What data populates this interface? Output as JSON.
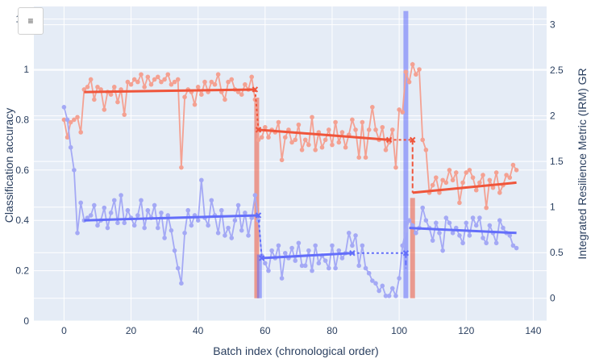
{
  "ui": {
    "menu_icon": "≡"
  },
  "chart_data": {
    "type": "line",
    "title": "",
    "xlabel": "Batch index (chronological order)",
    "ylabel": "Classification accuracy",
    "y2label": "Integrated Resilience Metric (IRM) GR",
    "xlim": [
      -9,
      144
    ],
    "ylim": [
      0,
      1.25
    ],
    "y2lim": [
      -0.25,
      3.2
    ],
    "x_ticks": [
      0,
      20,
      40,
      60,
      80,
      100,
      120,
      140
    ],
    "y_ticks": [
      0,
      0.2,
      0.4,
      0.6,
      0.8,
      1,
      1.2
    ],
    "y2_ticks": [
      0,
      0.5,
      1,
      1.5,
      2,
      2.5,
      3
    ],
    "grid": true,
    "colors": {
      "red_raw": "#f4a192",
      "red_fit": "#ef553b",
      "blue_raw": "#a4a9f5",
      "blue_fit": "#636efa",
      "plot_bg": "#e5ecf6",
      "grid": "#ffffff",
      "text": "#2a3f5f"
    },
    "series": [
      {
        "color": "#f4a192",
        "x": [
          0,
          1,
          2,
          3,
          4,
          5,
          6,
          7,
          8,
          9,
          10,
          11,
          12,
          13,
          14,
          15,
          16,
          17,
          18,
          19,
          20,
          21,
          22,
          23,
          24,
          25,
          26,
          27,
          28,
          29,
          30,
          31,
          32,
          33,
          34,
          35,
          36,
          37,
          38,
          39,
          40,
          41,
          42,
          43,
          44,
          45,
          46,
          47,
          48,
          49,
          50,
          51,
          52,
          53,
          54,
          55,
          56,
          57,
          58,
          59,
          60,
          61,
          62,
          63,
          64,
          65,
          66,
          67,
          68,
          69,
          70,
          71,
          72,
          73,
          74,
          75,
          76,
          77,
          78,
          79,
          80,
          81,
          82,
          83,
          84,
          85,
          86,
          87,
          88,
          89,
          90,
          91,
          92,
          93,
          94,
          95,
          96,
          97,
          98,
          99,
          100,
          101,
          102,
          103,
          104,
          105,
          106,
          107,
          108,
          109,
          110,
          111,
          112,
          113,
          114,
          115,
          116,
          117,
          118,
          119,
          120,
          121,
          122,
          123,
          124,
          125,
          126,
          127,
          128,
          129,
          130,
          131,
          132,
          133,
          134,
          135
        ],
        "y": [
          0.8,
          0.73,
          0.79,
          0.8,
          0.81,
          0.75,
          0.92,
          0.93,
          0.96,
          0.88,
          0.93,
          0.92,
          0.84,
          0.91,
          0.9,
          0.93,
          0.87,
          0.92,
          0.82,
          0.95,
          0.94,
          0.96,
          0.95,
          0.98,
          0.93,
          0.97,
          0.94,
          0.96,
          0.97,
          0.95,
          0.96,
          0.98,
          0.94,
          0.95,
          0.96,
          0.61,
          0.89,
          0.92,
          0.91,
          0.86,
          0.93,
          0.9,
          0.95,
          0.91,
          0.95,
          0.94,
          0.98,
          0.91,
          0.88,
          0.95,
          0.96,
          0.92,
          0.91,
          0.9,
          0.94,
          0.92,
          0.97,
          0.88,
          0.72,
          0.73,
          0.77,
          0.73,
          0.76,
          0.75,
          0.79,
          0.64,
          0.73,
          0.76,
          0.71,
          0.72,
          0.78,
          0.68,
          0.72,
          0.7,
          0.81,
          0.68,
          0.75,
          0.69,
          0.72,
          0.76,
          0.7,
          0.79,
          0.71,
          0.75,
          0.69,
          0.74,
          0.8,
          0.76,
          0.65,
          0.79,
          0.65,
          0.76,
          0.85,
          0.76,
          0.72,
          0.77,
          0.68,
          0.71,
          0.76,
          0.61,
          0.84,
          0.83,
          0.99,
          0.95,
          1.02,
          0.98,
          1.0,
          0.72,
          0.68,
          0.51,
          0.54,
          0.57,
          0.51,
          0.56,
          0.55,
          0.6,
          0.56,
          0.59,
          0.47,
          0.55,
          0.59,
          0.6,
          0.57,
          0.52,
          0.55,
          0.58,
          0.45,
          0.56,
          0.53,
          0.59,
          0.51,
          0.54,
          0.58,
          0.57,
          0.62,
          0.6
        ]
      },
      {
        "color": "#a4a9f5",
        "x": [
          0,
          1,
          2,
          3,
          4,
          5,
          6,
          7,
          8,
          9,
          10,
          11,
          12,
          13,
          14,
          15,
          16,
          17,
          18,
          19,
          20,
          21,
          22,
          23,
          24,
          25,
          26,
          27,
          28,
          29,
          30,
          31,
          32,
          33,
          34,
          35,
          36,
          37,
          38,
          39,
          40,
          41,
          42,
          43,
          44,
          45,
          46,
          47,
          48,
          49,
          50,
          51,
          52,
          53,
          54,
          55,
          56,
          57,
          58,
          59,
          60,
          61,
          62,
          63,
          64,
          65,
          66,
          67,
          68,
          69,
          70,
          71,
          72,
          73,
          74,
          75,
          76,
          77,
          78,
          79,
          80,
          81,
          82,
          83,
          84,
          85,
          86,
          87,
          88,
          89,
          90,
          91,
          92,
          93,
          94,
          95,
          96,
          97,
          98,
          99,
          100,
          101,
          102,
          103,
          104,
          105,
          106,
          107,
          108,
          109,
          110,
          111,
          112,
          113,
          114,
          115,
          116,
          117,
          118,
          119,
          120,
          121,
          122,
          123,
          124,
          125,
          126,
          127,
          128,
          129,
          130,
          131,
          132,
          133,
          134,
          135
        ],
        "y": [
          0.85,
          0.8,
          0.69,
          0.6,
          0.35,
          0.47,
          0.4,
          0.41,
          0.42,
          0.46,
          0.38,
          0.4,
          0.45,
          0.37,
          0.43,
          0.48,
          0.39,
          0.5,
          0.39,
          0.44,
          0.41,
          0.38,
          0.42,
          0.48,
          0.37,
          0.44,
          0.41,
          0.46,
          0.37,
          0.43,
          0.33,
          0.42,
          0.36,
          0.28,
          0.21,
          0.15,
          0.35,
          0.44,
          0.38,
          0.42,
          0.4,
          0.56,
          0.41,
          0.38,
          0.48,
          0.42,
          0.35,
          0.44,
          0.34,
          0.37,
          0.33,
          0.4,
          0.46,
          0.36,
          0.43,
          0.34,
          0.41,
          0.5,
          0.4,
          0.26,
          0.23,
          0.2,
          0.28,
          0.25,
          0.3,
          0.17,
          0.27,
          0.25,
          0.29,
          0.24,
          0.31,
          0.22,
          0.22,
          0.28,
          0.2,
          0.3,
          0.23,
          0.26,
          0.24,
          0.21,
          0.3,
          0.21,
          0.28,
          0.25,
          0.27,
          0.35,
          0.3,
          0.34,
          0.22,
          0.3,
          0.21,
          0.19,
          0.16,
          0.15,
          0.12,
          0.14,
          0.1,
          0.1,
          0.13,
          0.1,
          0.17,
          0.3,
          0.36,
          0.4,
          0.38,
          0.35,
          0.37,
          0.45,
          0.4,
          0.37,
          0.32,
          0.39,
          0.35,
          0.28,
          0.41,
          0.39,
          0.35,
          0.37,
          0.34,
          0.31,
          0.39,
          0.34,
          0.41,
          0.38,
          0.41,
          0.33,
          0.31,
          0.38,
          0.35,
          0.31,
          0.4,
          0.37,
          0.35,
          0.34,
          0.3,
          0.29
        ]
      }
    ],
    "fit_lines": [
      {
        "color": "#ef553b",
        "x": [
          6,
          57
        ],
        "y": [
          0.91,
          0.92
        ]
      },
      {
        "color": "#ef553b",
        "x": [
          58,
          97
        ],
        "y": [
          0.76,
          0.72
        ]
      },
      {
        "color": "#ef553b",
        "x": [
          104,
          135
        ],
        "y": [
          0.51,
          0.55
        ]
      },
      {
        "color": "#636efa",
        "x": [
          6,
          58
        ],
        "y": [
          0.4,
          0.42
        ]
      },
      {
        "color": "#636efa",
        "x": [
          59,
          86
        ],
        "y": [
          0.25,
          0.27
        ]
      },
      {
        "color": "#636efa",
        "x": [
          103,
          135
        ],
        "y": [
          0.37,
          0.35
        ]
      }
    ],
    "transitions": [
      {
        "color": "#ef553b",
        "x_from": 57,
        "y_from": 0.92,
        "x_to": 58,
        "y_to": 0.76
      },
      {
        "color": "#ef553b",
        "x_from": 97,
        "y_from": 0.72,
        "x_to": 104,
        "y_to": 0.72,
        "x_down": 104,
        "y_down": 0.51
      },
      {
        "color": "#636efa",
        "x_from": 58,
        "y_from": 0.42,
        "x_to": 59,
        "y_to": 0.25
      },
      {
        "color": "#636efa",
        "x_from": 86,
        "y_from": 0.27,
        "x_to": 102,
        "y_to": 0.27,
        "x_down": 102,
        "y_down": 0.21
      }
    ],
    "bars_y2": [
      {
        "color": "#ef553b",
        "x": 57.5,
        "value": 2.2
      },
      {
        "color": "#636efa",
        "x": 58.3,
        "value": 0.48
      },
      {
        "color": "#636efa",
        "x": 102,
        "value": 3.15
      },
      {
        "color": "#ef553b",
        "x": 104,
        "value": 1.1
      }
    ]
  }
}
